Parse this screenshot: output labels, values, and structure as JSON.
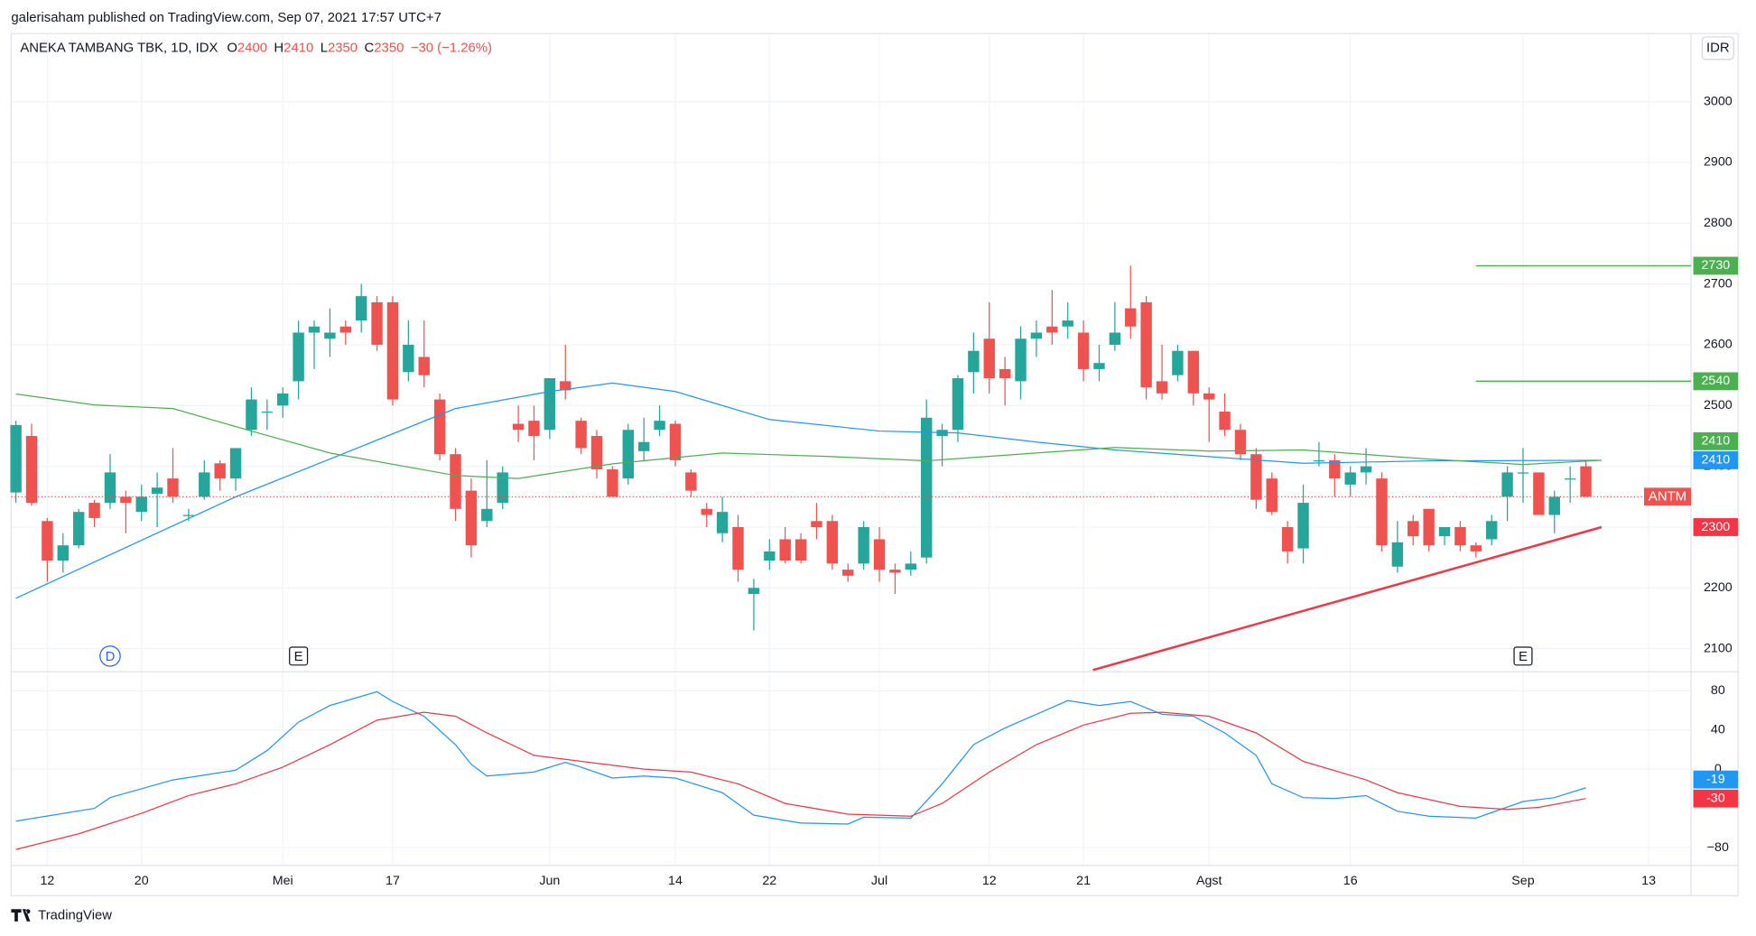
{
  "header": {
    "published": "galerisaham published on TradingView.com, Sep 07, 2021 17:57 UTC+7"
  },
  "footer": {
    "brand": "TradingView"
  },
  "chart_data": [
    {
      "type": "candlestick",
      "title": "ANEKA TAMBANG TBK, 1D, IDX",
      "name": "ANTM",
      "legend": [
        {
          "label": "O",
          "value": 2400
        },
        {
          "label": "H",
          "value": 2410
        },
        {
          "label": "L",
          "value": 2350
        },
        {
          "label": "C",
          "value": 2350
        }
      ],
      "change": "−30 (−1.26%)",
      "currency": "IDR",
      "open": [
        2357,
        2450,
        2310,
        2245,
        2270,
        2340,
        2340,
        2350,
        2325,
        2355,
        2380,
        2320,
        2350,
        2405,
        2380,
        2460,
        2490,
        2500,
        2540,
        2620,
        2610,
        2630,
        2640,
        2670,
        2670,
        2555,
        2580,
        2510,
        2420,
        2360,
        2310,
        2340,
        2470,
        2475,
        2460,
        2540,
        2475,
        2450,
        2395,
        2380,
        2425,
        2460,
        2470,
        2390,
        2330,
        2290,
        2300,
        2190,
        2245,
        2280,
        2280,
        2310,
        2310,
        2230,
        2240,
        2280,
        2230,
        2230,
        2250,
        2450,
        2460,
        2555,
        2610,
        2560,
        2540,
        2610,
        2630,
        2630,
        2620,
        2560,
        2600,
        2660,
        2670,
        2540,
        2550,
        2590,
        2520,
        2490,
        2460,
        2420,
        2380,
        2300,
        2265,
        2410,
        2410,
        2370,
        2390,
        2380,
        2235,
        2310,
        2330,
        2285,
        2300,
        2270,
        2280,
        2350,
        2390,
        2390,
        2320,
        2380,
        2400
      ],
      "high": [
        2475,
        2470,
        2315,
        2290,
        2330,
        2345,
        2420,
        2360,
        2370,
        2390,
        2430,
        2330,
        2410,
        2410,
        2430,
        2530,
        2510,
        2530,
        2640,
        2640,
        2660,
        2640,
        2700,
        2680,
        2680,
        2640,
        2640,
        2520,
        2430,
        2380,
        2410,
        2400,
        2500,
        2500,
        2545,
        2600,
        2480,
        2460,
        2400,
        2470,
        2480,
        2500,
        2475,
        2395,
        2340,
        2350,
        2320,
        2215,
        2280,
        2300,
        2290,
        2340,
        2320,
        2240,
        2310,
        2300,
        2240,
        2260,
        2510,
        2470,
        2550,
        2620,
        2670,
        2580,
        2630,
        2640,
        2690,
        2670,
        2640,
        2600,
        2670,
        2730,
        2680,
        2600,
        2600,
        2590,
        2530,
        2520,
        2470,
        2430,
        2390,
        2310,
        2370,
        2440,
        2420,
        2400,
        2430,
        2390,
        2310,
        2320,
        2330,
        2300,
        2310,
        2275,
        2320,
        2400,
        2430,
        2390,
        2360,
        2400,
        2410
      ],
      "low": [
        2340,
        2335,
        2210,
        2225,
        2265,
        2300,
        2330,
        2290,
        2310,
        2300,
        2340,
        2310,
        2345,
        2360,
        2360,
        2450,
        2460,
        2480,
        2510,
        2560,
        2580,
        2600,
        2620,
        2590,
        2500,
        2540,
        2530,
        2410,
        2310,
        2250,
        2300,
        2330,
        2440,
        2410,
        2445,
        2510,
        2420,
        2380,
        2350,
        2370,
        2410,
        2450,
        2400,
        2350,
        2300,
        2275,
        2210,
        2130,
        2230,
        2240,
        2240,
        2280,
        2230,
        2210,
        2230,
        2210,
        2190,
        2220,
        2240,
        2400,
        2440,
        2520,
        2520,
        2500,
        2510,
        2580,
        2600,
        2610,
        2540,
        2540,
        2590,
        2610,
        2510,
        2510,
        2540,
        2500,
        2440,
        2450,
        2410,
        2330,
        2320,
        2240,
        2240,
        2400,
        2350,
        2350,
        2370,
        2260,
        2225,
        2270,
        2260,
        2270,
        2260,
        2250,
        2270,
        2310,
        2340,
        2320,
        2290,
        2340,
        2350
      ],
      "close": [
        2468,
        2340,
        2245,
        2270,
        2325,
        2315,
        2390,
        2340,
        2350,
        2365,
        2350,
        2320,
        2390,
        2380,
        2430,
        2510,
        2490,
        2520,
        2620,
        2630,
        2620,
        2620,
        2680,
        2600,
        2510,
        2600,
        2550,
        2420,
        2330,
        2270,
        2330,
        2390,
        2460,
        2450,
        2545,
        2525,
        2430,
        2395,
        2350,
        2460,
        2440,
        2475,
        2410,
        2360,
        2320,
        2325,
        2230,
        2200,
        2260,
        2245,
        2245,
        2300,
        2240,
        2220,
        2300,
        2230,
        2225,
        2240,
        2480,
        2460,
        2545,
        2590,
        2545,
        2545,
        2610,
        2620,
        2620,
        2640,
        2560,
        2570,
        2620,
        2630,
        2530,
        2520,
        2590,
        2520,
        2510,
        2460,
        2420,
        2345,
        2325,
        2260,
        2340,
        2410,
        2380,
        2390,
        2400,
        2270,
        2275,
        2285,
        2270,
        2300,
        2270,
        2260,
        2310,
        2390,
        2390,
        2320,
        2350,
        2380,
        2350
      ],
      "up_color": "#26a69a",
      "down_color": "#ef5350",
      "series": [
        {
          "color": "#2196f3",
          "x": [
            0,
            14,
            20,
            28,
            34,
            38,
            42,
            48,
            55,
            60,
            65,
            70,
            76,
            82,
            90,
            101
          ],
          "values": [
            2183,
            2350,
            2412,
            2495,
            2523,
            2537,
            2523,
            2477,
            2458,
            2455,
            2440,
            2427,
            2416,
            2405,
            2409,
            2410
          ]
        },
        {
          "color": "#4caf50",
          "x": [
            0,
            5,
            10,
            15,
            20,
            28,
            32,
            38,
            45,
            52,
            58,
            65,
            70,
            76,
            82,
            90,
            96,
            101
          ],
          "values": [
            2519,
            2501,
            2495,
            2458,
            2422,
            2385,
            2380,
            2404,
            2422,
            2416,
            2409,
            2422,
            2431,
            2425,
            2427,
            2412,
            2403,
            2410
          ]
        },
        {
          "color": "#f23645",
          "x": [
            68.6,
            101
          ],
          "values": [
            2065,
            2300
          ]
        }
      ],
      "levels": [
        {
          "value": 2730,
          "x": 93,
          "color": "#4caf50"
        },
        {
          "value": 2540,
          "x": 93,
          "color": "#4caf50"
        }
      ],
      "events": [
        {
          "label": "D",
          "x": 6,
          "color": "#2962ff"
        },
        {
          "label": "E",
          "x": 18,
          "color": "#131722"
        },
        {
          "label": "E",
          "x": 96,
          "color": "#131722"
        }
      ],
      "xlim": [
        -0.3,
        106.7
      ],
      "xticks": [
        {
          "value": 2,
          "label": "12"
        },
        {
          "value": 8,
          "label": "20"
        },
        {
          "value": 17,
          "label": "Mei"
        },
        {
          "value": 24,
          "label": "17"
        },
        {
          "value": 34,
          "label": "Jun"
        },
        {
          "value": 42,
          "label": "14"
        },
        {
          "value": 48,
          "label": "22"
        },
        {
          "value": 55,
          "label": "Jul"
        },
        {
          "value": 62,
          "label": "12"
        },
        {
          "value": 68,
          "label": "21"
        },
        {
          "value": 76,
          "label": "Agst"
        },
        {
          "value": 85,
          "label": "16"
        },
        {
          "value": 96,
          "label": "Sep"
        },
        {
          "value": 104,
          "label": "13"
        }
      ],
      "ylim": [
        2062,
        3112
      ],
      "yticks": [
        2100,
        2200,
        2300,
        2400,
        2500,
        2600,
        2700,
        2800,
        2900,
        3000
      ],
      "grid": true
    },
    {
      "type": "line",
      "series": [
        {
          "color": "#2196f3",
          "x": [
            0,
            5,
            6,
            10,
            14,
            16,
            18,
            20,
            23,
            24,
            26,
            28,
            29,
            30,
            33,
            35,
            36,
            38,
            40,
            42,
            45,
            47,
            50,
            53,
            54,
            57,
            59,
            61,
            63,
            65,
            67,
            69,
            71,
            73,
            75,
            77,
            79,
            80,
            82,
            84,
            86,
            88,
            90,
            93,
            96,
            98,
            100
          ],
          "values": [
            -53,
            -40,
            -29,
            -11,
            -1,
            19,
            48,
            65,
            79,
            69,
            54,
            25,
            5,
            -7,
            -3,
            7,
            2,
            -9,
            -7,
            -9,
            -24,
            -47,
            -55,
            -56,
            -49,
            -50,
            -15,
            25,
            42,
            56,
            70,
            65,
            69,
            56,
            54,
            37,
            14,
            -15,
            -29,
            -30,
            -27,
            -43,
            -48,
            -50,
            -33,
            -29,
            -19
          ]
        },
        {
          "color": "#f23645",
          "x": [
            0,
            4,
            8,
            11,
            14,
            17,
            20,
            23,
            26,
            28,
            30,
            33,
            36,
            40,
            43,
            46,
            49,
            53,
            57,
            59,
            62,
            65,
            68,
            71,
            73,
            76,
            79,
            82,
            86,
            88,
            92,
            95,
            97,
            100
          ],
          "values": [
            -82,
            -66,
            -45,
            -27,
            -15,
            2,
            25,
            50,
            58,
            54,
            37,
            14,
            8,
            0,
            -3,
            -15,
            -35,
            -46,
            -48,
            -35,
            -3,
            25,
            45,
            57,
            58,
            54,
            37,
            8,
            -11,
            -24,
            -38,
            -41,
            -39,
            -30
          ]
        }
      ],
      "ylim": [
        -98.3,
        99.4
      ],
      "yticks": [
        80,
        40,
        0,
        {
          "value": -80,
          "label": "−80"
        }
      ],
      "grid": true
    }
  ]
}
